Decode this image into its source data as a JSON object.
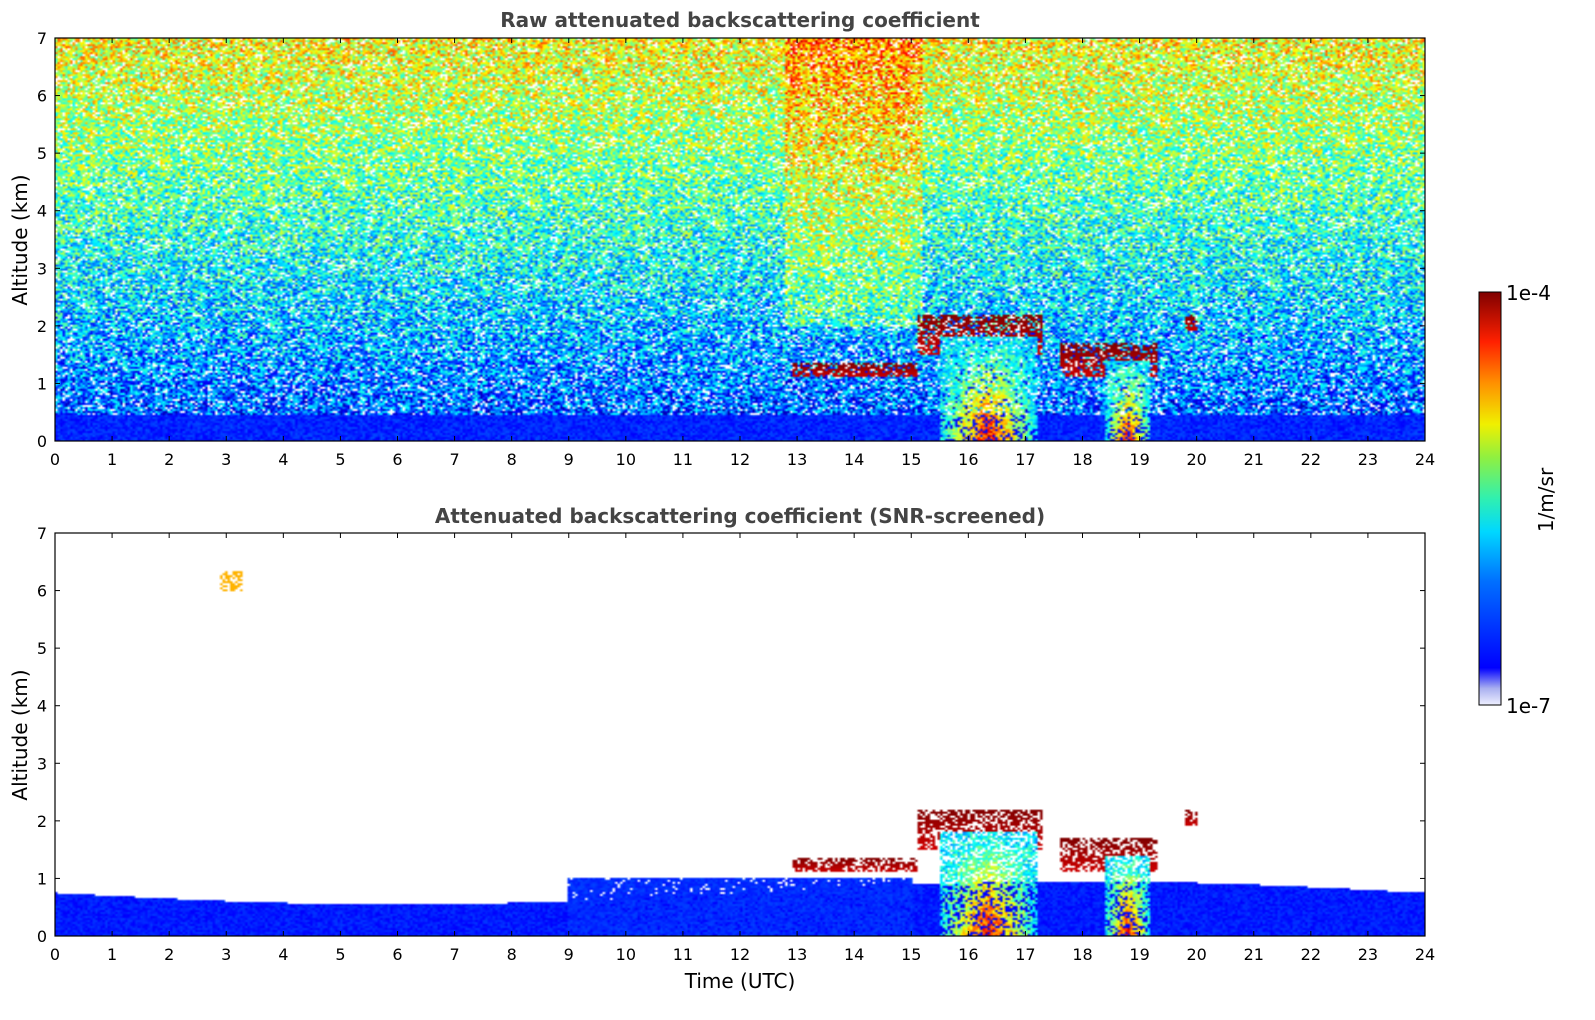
{
  "chart_data": [
    {
      "type": "heatmap",
      "title": "Raw attenuated backscattering coefficient",
      "xlabel": "",
      "ylabel": "Altitude (km)",
      "xlim": [
        0,
        24
      ],
      "ylim": [
        0,
        7
      ],
      "x_ticks": [
        "0",
        "1",
        "2",
        "3",
        "4",
        "5",
        "6",
        "7",
        "8",
        "9",
        "10",
        "11",
        "12",
        "13",
        "14",
        "15",
        "16",
        "17",
        "18",
        "19",
        "20",
        "21",
        "22",
        "23",
        "24"
      ],
      "y_ticks": [
        "0",
        "1",
        "2",
        "3",
        "4",
        "5",
        "6",
        "7"
      ],
      "features": [
        {
          "kind": "boundary_layer",
          "x": [
            0,
            24
          ],
          "top_km": 0.45
        },
        {
          "kind": "cloud",
          "x": [
            12.9,
            15.1
          ],
          "base_km": 1.1,
          "top_km": 1.35
        },
        {
          "kind": "cloud",
          "x": [
            15.1,
            17.3
          ],
          "base_km": 1.5,
          "top_km": 2.2
        },
        {
          "kind": "cloud",
          "x": [
            17.6,
            19.3
          ],
          "base_km": 1.1,
          "top_km": 1.7
        },
        {
          "kind": "cloud",
          "x": [
            19.8,
            20.0
          ],
          "base_km": 1.9,
          "top_km": 2.2
        },
        {
          "kind": "precipitation",
          "x": [
            15.5,
            17.2
          ],
          "base_km": 0,
          "top_km": 1.8
        },
        {
          "kind": "precipitation",
          "x": [
            18.4,
            19.2
          ],
          "base_km": 0,
          "top_km": 1.4
        }
      ]
    },
    {
      "type": "heatmap",
      "title": "Attenuated backscattering coefficient (SNR-screened)",
      "xlabel": "Time (UTC)",
      "ylabel": "Altitude (km)",
      "xlim": [
        0,
        24
      ],
      "ylim": [
        0,
        7
      ],
      "x_ticks": [
        "0",
        "1",
        "2",
        "3",
        "4",
        "5",
        "6",
        "7",
        "8",
        "9",
        "10",
        "11",
        "12",
        "13",
        "14",
        "15",
        "16",
        "17",
        "18",
        "19",
        "20",
        "21",
        "22",
        "23",
        "24"
      ],
      "y_ticks": [
        "0",
        "1",
        "2",
        "3",
        "4",
        "5",
        "6",
        "7"
      ],
      "features": [
        {
          "kind": "boundary_layer",
          "x": [
            0,
            24
          ],
          "top_km": 0.75
        },
        {
          "kind": "aerosol_layer",
          "x": [
            9,
            15
          ],
          "top_km": 1.0
        },
        {
          "kind": "cloud",
          "x": [
            12.9,
            15.1
          ],
          "base_km": 1.1,
          "top_km": 1.35
        },
        {
          "kind": "cloud",
          "x": [
            15.1,
            17.3
          ],
          "base_km": 1.5,
          "top_km": 2.2
        },
        {
          "kind": "cloud",
          "x": [
            17.6,
            19.3
          ],
          "base_km": 1.1,
          "top_km": 1.7
        },
        {
          "kind": "cloud",
          "x": [
            19.8,
            20.0
          ],
          "base_km": 1.9,
          "top_km": 2.2
        },
        {
          "kind": "precipitation",
          "x": [
            15.5,
            17.2
          ],
          "base_km": 0,
          "top_km": 1.8
        },
        {
          "kind": "precipitation",
          "x": [
            18.4,
            19.2
          ],
          "base_km": 0,
          "top_km": 1.4
        },
        {
          "kind": "speckle",
          "x": [
            2.9,
            3.3
          ],
          "base_km": 6.0,
          "top_km": 6.35
        }
      ]
    }
  ],
  "colorbar": {
    "min_label": "1e-7",
    "max_label": "1e-4",
    "label": "1/m/sr",
    "colormap": "jet"
  }
}
